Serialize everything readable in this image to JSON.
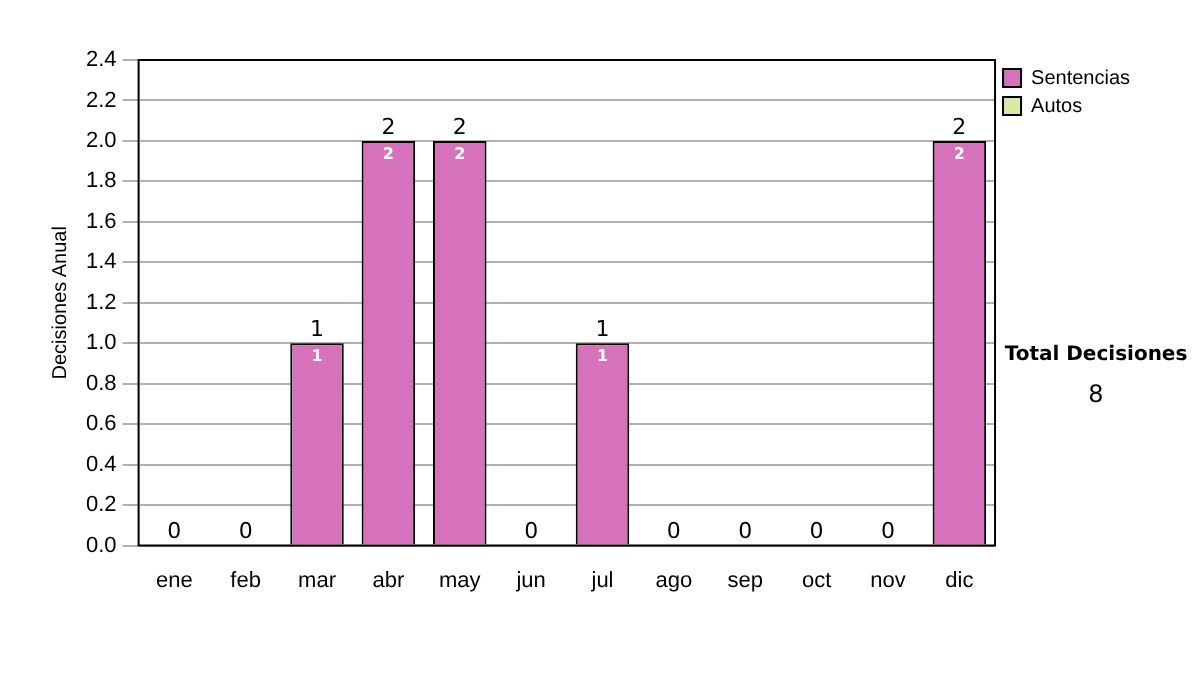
{
  "chart_data": {
    "type": "bar",
    "stacked": true,
    "ylabel": "Decisiones Anual",
    "categories": [
      "ene",
      "feb",
      "mar",
      "abr",
      "may",
      "jun",
      "jul",
      "ago",
      "sep",
      "oct",
      "nov",
      "dic"
    ],
    "series": [
      {
        "name": "Sentencias",
        "color": "#d672bb",
        "values": [
          0,
          0,
          1,
          2,
          2,
          0,
          1,
          0,
          0,
          0,
          0,
          2
        ],
        "value_labels": [
          null,
          null,
          "1",
          "2",
          "2",
          null,
          "1",
          null,
          null,
          null,
          null,
          "2"
        ]
      },
      {
        "name": "Autos",
        "color": "#d9eaa2",
        "values": [
          0,
          0,
          0,
          0,
          0,
          0,
          0,
          0,
          0,
          0,
          0,
          0
        ]
      }
    ],
    "totals": [
      "0",
      "0",
      "1",
      "2",
      "2",
      "0",
      "1",
      "0",
      "0",
      "0",
      "0",
      "2"
    ],
    "ylim": [
      0,
      2.4
    ],
    "yticks": [
      {
        "value": 0,
        "label": "0.0"
      },
      0.2,
      0.4,
      0.6,
      0.8,
      {
        "value": 1,
        "label": "1.0"
      },
      1.2,
      1.4,
      1.6,
      1.8,
      {
        "value": 2,
        "label": "2.0"
      },
      2.2,
      2.4
    ],
    "grid": "y",
    "legend": "right",
    "annotations": [
      "Total Decisiones",
      "8"
    ]
  }
}
